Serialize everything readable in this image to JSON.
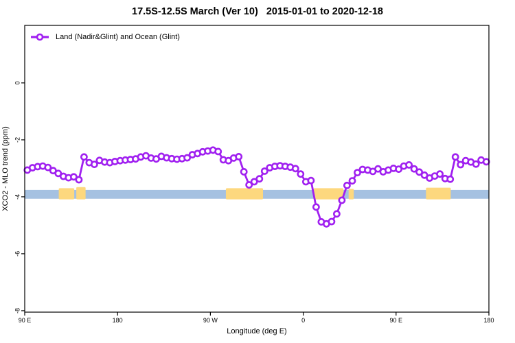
{
  "title": "17.5S-12.5S March (Ver 10)   2015-01-01 to 2020-12-18",
  "legend": {
    "label": "Land (Nadir&Glint) and Ocean (Glint)"
  },
  "colors": {
    "series": "#A020F0",
    "ocean_band": "#A5C1E1",
    "land_band": "#FDD87E",
    "axis": "#000000",
    "background": "#FFFFFF"
  },
  "chart_data": {
    "type": "line",
    "title": "17.5S-12.5S March (Ver 10)   2015-01-01 to 2020-12-18",
    "xlabel": "Longitude (deg E)",
    "ylabel": "XCO2 - MLO trend (ppm)",
    "xlim": [
      90,
      540
    ],
    "ylim": [
      -8.05,
      2.02
    ],
    "grid": false,
    "legend_position": "top-left",
    "xticks": {
      "values": [
        90,
        180,
        270,
        360,
        450,
        540
      ],
      "labels": [
        "90 E",
        "180",
        "90 W",
        "0",
        "90 E",
        "180"
      ]
    },
    "yticks": {
      "values": [
        0,
        -2,
        -4,
        -6,
        -8
      ],
      "labels": [
        "0",
        "-2",
        "-4",
        "-6",
        "-8"
      ]
    },
    "bands": [
      {
        "name": "ocean-glint-band",
        "color": "#A5C1E1",
        "x_range": [
          90,
          540
        ],
        "y_range": [
          -4.07,
          -3.76
        ]
      },
      {
        "name": "land-segment-australia-west",
        "color": "#FDD87E",
        "x_range": [
          123,
          138
        ],
        "y_range": [
          -4.09,
          -3.7
        ]
      },
      {
        "name": "land-segment-australia-east",
        "color": "#FDD87E",
        "x_range": [
          140,
          149
        ],
        "y_range": [
          -4.09,
          -3.66
        ]
      },
      {
        "name": "land-segment-south-america",
        "color": "#FDD87E",
        "x_range": [
          285,
          321
        ],
        "y_range": [
          -4.09,
          -3.7
        ]
      },
      {
        "name": "land-segment-africa",
        "color": "#FDD87E",
        "x_range": [
          370,
          399
        ],
        "y_range": [
          -4.09,
          -3.7
        ]
      },
      {
        "name": "land-segment-madagascar",
        "color": "#FDD87E",
        "x_range": [
          404,
          409
        ],
        "y_range": [
          -4.09,
          -3.72
        ]
      },
      {
        "name": "land-segment-australia",
        "color": "#FDD87E",
        "x_range": [
          479,
          503
        ],
        "y_range": [
          -4.09,
          -3.68
        ]
      }
    ],
    "series": [
      {
        "name": "Land (Nadir&Glint) and Ocean (Glint)",
        "color": "#A020F0",
        "marker": "open-circle",
        "x": [
          92.5,
          97.5,
          102.5,
          107.5,
          112.5,
          117.5,
          122.5,
          127.5,
          132.5,
          137.5,
          142.5,
          147.5,
          152.5,
          157.5,
          162.5,
          167.5,
          172.5,
          177.5,
          182.5,
          187.5,
          192.5,
          197.5,
          202.5,
          207.5,
          212.5,
          217.5,
          222.5,
          227.5,
          232.5,
          237.5,
          242.5,
          247.5,
          252.5,
          257.5,
          262.5,
          267.5,
          272.5,
          277.5,
          282.5,
          287.5,
          292.5,
          297.5,
          302.5,
          307.5,
          312.5,
          317.5,
          322.5,
          327.5,
          332.5,
          337.5,
          342.5,
          347.5,
          352.5,
          357.5,
          362.5,
          367.5,
          372.5,
          377.5,
          382.5,
          387.5,
          392.5,
          397.5,
          402.5,
          407.5,
          412.5,
          417.5,
          422.5,
          427.5,
          432.5,
          437.5,
          442.5,
          447.5,
          452.5,
          457.5,
          462.5,
          467.5,
          472.5,
          477.5,
          482.5,
          487.5,
          492.5,
          497.5,
          502.5,
          507.5,
          512.5,
          517.5,
          522.5,
          527.5,
          532.5,
          537.5
        ],
        "y": [
          -3.06,
          -2.98,
          -2.94,
          -2.92,
          -2.97,
          -3.08,
          -3.18,
          -3.28,
          -3.33,
          -3.3,
          -3.4,
          -2.6,
          -2.8,
          -2.86,
          -2.72,
          -2.78,
          -2.8,
          -2.76,
          -2.73,
          -2.71,
          -2.69,
          -2.67,
          -2.6,
          -2.56,
          -2.64,
          -2.67,
          -2.58,
          -2.63,
          -2.66,
          -2.68,
          -2.66,
          -2.63,
          -2.52,
          -2.48,
          -2.42,
          -2.39,
          -2.36,
          -2.41,
          -2.7,
          -2.73,
          -2.64,
          -2.59,
          -3.12,
          -3.58,
          -3.47,
          -3.37,
          -3.1,
          -2.98,
          -2.93,
          -2.91,
          -2.93,
          -2.96,
          -3.01,
          -3.2,
          -3.47,
          -3.43,
          -4.36,
          -4.88,
          -4.95,
          -4.87,
          -4.6,
          -4.12,
          -3.6,
          -3.44,
          -3.15,
          -3.04,
          -3.06,
          -3.11,
          -3.02,
          -3.12,
          -3.06,
          -3.0,
          -3.03,
          -2.92,
          -2.88,
          -3.02,
          -3.13,
          -3.24,
          -3.34,
          -3.27,
          -3.2,
          -3.36,
          -3.38,
          -2.6,
          -2.87,
          -2.73,
          -2.78,
          -2.85,
          -2.71,
          -2.77
        ]
      }
    ]
  }
}
